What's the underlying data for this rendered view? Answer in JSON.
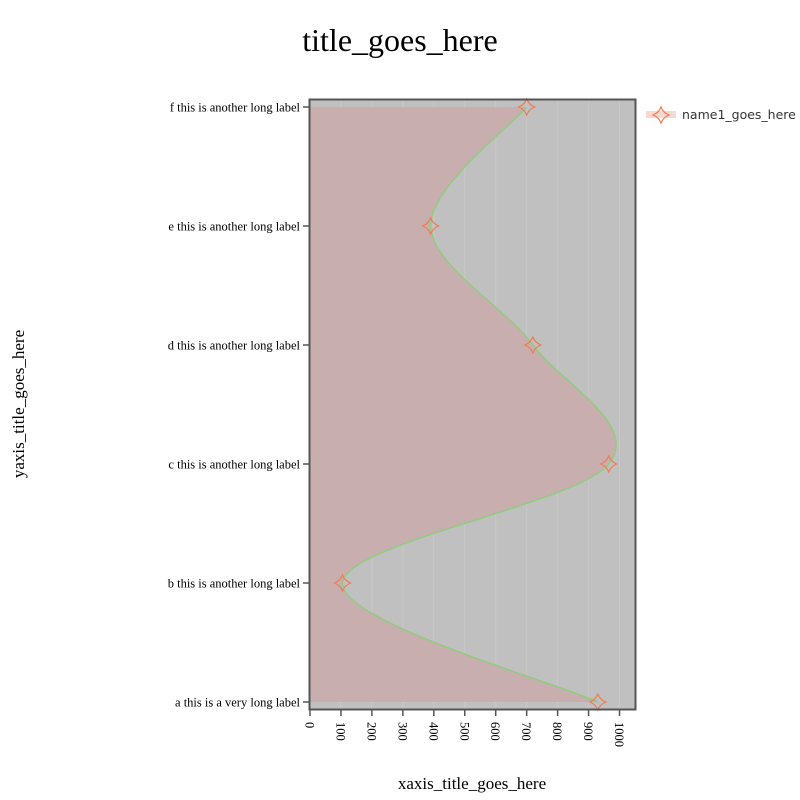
{
  "chart_data": {
    "type": "area",
    "orientation": "horizontal",
    "title": "title_goes_here",
    "xlabel": "xaxis_title_goes_here",
    "ylabel": "yaxis_title_goes_here",
    "xlim": [
      0,
      1050
    ],
    "x_ticks": [
      "0",
      "100",
      "200",
      "300",
      "400",
      "500",
      "600",
      "700",
      "800",
      "900",
      "1000"
    ],
    "categories": [
      "a this is a very long label",
      "b this is another long label",
      "c this is another long label",
      "d this is another long label",
      "e this is another long label",
      "f this is another long label"
    ],
    "series": [
      {
        "name": "name1_goes_here",
        "values": [
          930,
          105,
          965,
          720,
          390,
          700
        ]
      }
    ],
    "legend": "top-right",
    "grid": true,
    "colors": {
      "plot_bg": "#c0c0c0",
      "fill": "#c9adae",
      "line": "#90cc7e",
      "marker": "#f47a50",
      "frame": "#555555"
    }
  }
}
